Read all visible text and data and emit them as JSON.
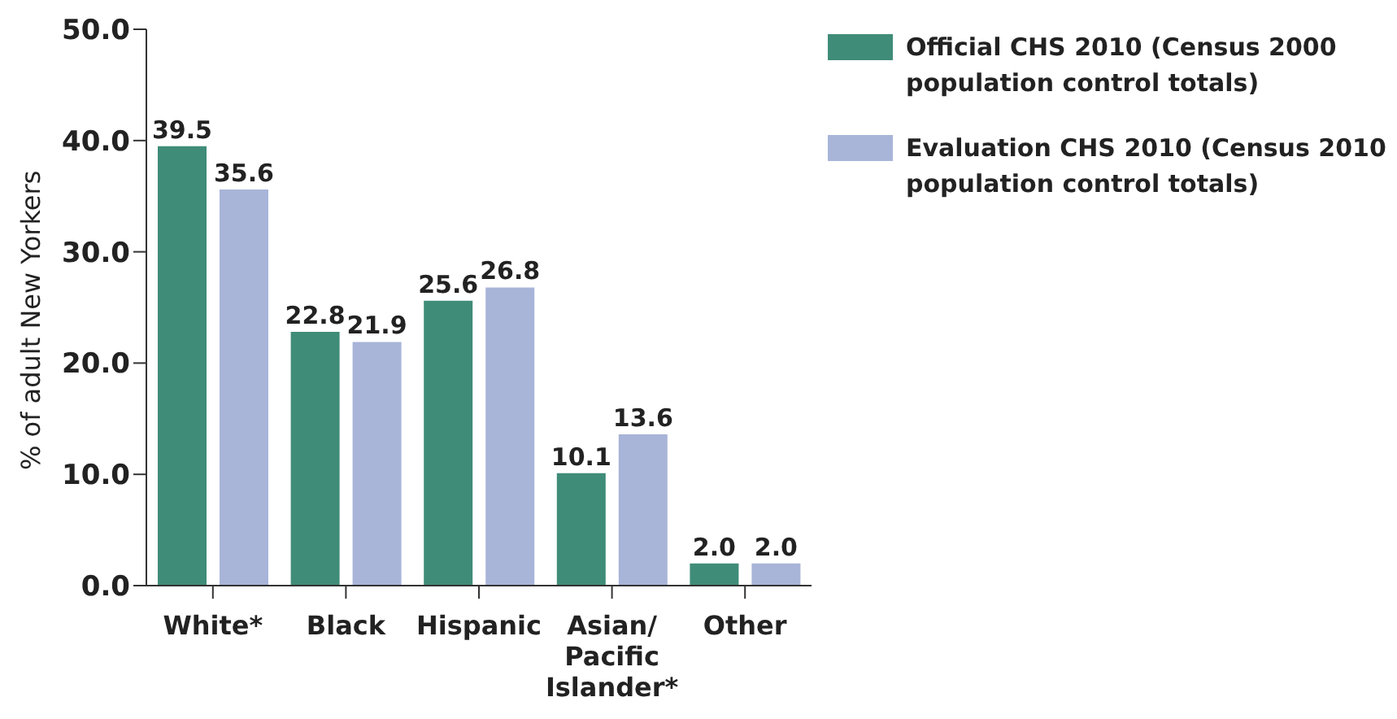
{
  "chart_data": {
    "type": "bar",
    "ylabel": "% of adult New Yorkers",
    "categories": [
      "White*",
      "Black",
      "Hispanic",
      "Asian/Pacific Islander*",
      "Other"
    ],
    "series": [
      {
        "name": "Official CHS 2010 (Census 2000 population control totals)",
        "color": "#3f8c78",
        "values": [
          39.5,
          22.8,
          25.6,
          10.1,
          2.0
        ],
        "value_labels": [
          "39.5",
          "22.8",
          "25.6",
          "10.1",
          "2.0"
        ]
      },
      {
        "name": "Evaluation CHS 2010 (Census 2010 population control totals)",
        "color": "#a8b4d8",
        "values": [
          35.6,
          21.9,
          26.8,
          13.6,
          2.0
        ],
        "value_labels": [
          "35.6",
          "21.9",
          "26.8",
          "13.6",
          "2.0"
        ]
      }
    ],
    "ylim": [
      0,
      50
    ],
    "yticks": [
      {
        "value": 0,
        "label": "0.0"
      },
      {
        "value": 10,
        "label": "10.0"
      },
      {
        "value": 20,
        "label": "20.0"
      },
      {
        "value": 30,
        "label": "30.0"
      },
      {
        "value": 40,
        "label": "40.0"
      },
      {
        "value": 50,
        "label": "50.0"
      }
    ],
    "grid": false,
    "legend": "top right"
  }
}
